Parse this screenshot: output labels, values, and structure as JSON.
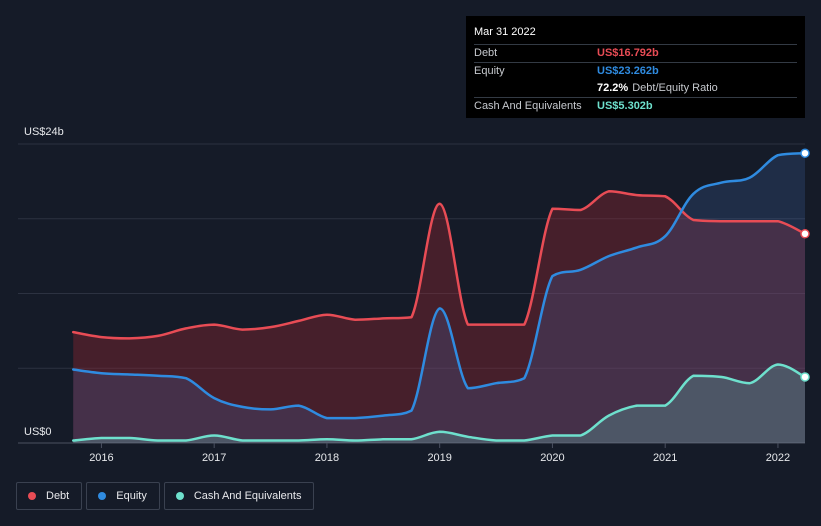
{
  "tooltip": {
    "date": "Mar 31 2022",
    "debt_label": "Debt",
    "debt_value": "US$16.792b",
    "equity_label": "Equity",
    "equity_value": "US$23.262b",
    "ratio_value": "72.2%",
    "ratio_label": "Debt/Equity Ratio",
    "cash_label": "Cash And Equivalents",
    "cash_value": "US$5.302b"
  },
  "legend": {
    "debt": "Debt",
    "equity": "Equity",
    "cash": "Cash And Equivalents"
  },
  "colors": {
    "debt": "#e84c55",
    "equity": "#2f8be0",
    "cash": "#6ee0cd",
    "background": "#151b28"
  },
  "chart_data": {
    "type": "area",
    "title": "",
    "xlabel": "",
    "ylabel": "",
    "y_top_label": "US$24b",
    "y_bottom_label": "US$0",
    "ylim": [
      0,
      24
    ],
    "xlim": [
      2015.26,
      2022.24
    ],
    "x_ticks": [
      2016,
      2017,
      2018,
      2019,
      2020,
      2021,
      2022
    ],
    "x_tick_labels": [
      "2016",
      "2017",
      "2018",
      "2019",
      "2020",
      "2021",
      "2022"
    ],
    "series": [
      {
        "name": "Debt",
        "key": "debt",
        "points": [
          [
            2015.75,
            8.9
          ],
          [
            2016.0,
            8.5
          ],
          [
            2016.25,
            8.4
          ],
          [
            2016.5,
            8.6
          ],
          [
            2016.75,
            9.2
          ],
          [
            2017.0,
            9.5
          ],
          [
            2017.25,
            9.1
          ],
          [
            2017.5,
            9.3
          ],
          [
            2017.75,
            9.8
          ],
          [
            2018.0,
            10.3
          ],
          [
            2018.25,
            9.9
          ],
          [
            2018.5,
            10.0
          ],
          [
            2018.75,
            10.1
          ],
          [
            2019.0,
            19.2
          ],
          [
            2019.25,
            9.5
          ],
          [
            2019.5,
            9.5
          ],
          [
            2019.75,
            9.5
          ],
          [
            2020.0,
            18.8
          ],
          [
            2020.25,
            18.7
          ],
          [
            2020.5,
            20.2
          ],
          [
            2020.75,
            19.9
          ],
          [
            2021.0,
            19.8
          ],
          [
            2021.25,
            17.9
          ],
          [
            2021.5,
            17.8
          ],
          [
            2021.75,
            17.8
          ],
          [
            2022.0,
            17.8
          ],
          [
            2022.24,
            16.792
          ]
        ]
      },
      {
        "name": "Equity",
        "key": "equity",
        "points": [
          [
            2015.75,
            5.9
          ],
          [
            2016.0,
            5.6
          ],
          [
            2016.25,
            5.5
          ],
          [
            2016.5,
            5.4
          ],
          [
            2016.75,
            5.2
          ],
          [
            2017.0,
            3.6
          ],
          [
            2017.25,
            2.9
          ],
          [
            2017.5,
            2.7
          ],
          [
            2017.75,
            3.0
          ],
          [
            2018.0,
            2.0
          ],
          [
            2018.25,
            2.0
          ],
          [
            2018.5,
            2.2
          ],
          [
            2018.75,
            2.6
          ],
          [
            2019.0,
            10.8
          ],
          [
            2019.25,
            4.4
          ],
          [
            2019.5,
            4.8
          ],
          [
            2019.75,
            5.2
          ],
          [
            2020.0,
            13.4
          ],
          [
            2020.25,
            13.9
          ],
          [
            2020.5,
            15.0
          ],
          [
            2020.75,
            15.7
          ],
          [
            2021.0,
            16.6
          ],
          [
            2021.25,
            20.0
          ],
          [
            2021.5,
            20.9
          ],
          [
            2021.75,
            21.3
          ],
          [
            2022.0,
            23.1
          ],
          [
            2022.24,
            23.262
          ]
        ]
      },
      {
        "name": "Cash And Equivalents",
        "key": "cash",
        "points": [
          [
            2015.75,
            0.2
          ],
          [
            2016.0,
            0.4
          ],
          [
            2016.25,
            0.4
          ],
          [
            2016.5,
            0.2
          ],
          [
            2016.75,
            0.2
          ],
          [
            2017.0,
            0.6
          ],
          [
            2017.25,
            0.2
          ],
          [
            2017.5,
            0.2
          ],
          [
            2017.75,
            0.2
          ],
          [
            2018.0,
            0.3
          ],
          [
            2018.25,
            0.2
          ],
          [
            2018.5,
            0.3
          ],
          [
            2018.75,
            0.3
          ],
          [
            2019.0,
            0.9
          ],
          [
            2019.25,
            0.5
          ],
          [
            2019.5,
            0.2
          ],
          [
            2019.75,
            0.2
          ],
          [
            2020.0,
            0.6
          ],
          [
            2020.25,
            0.6
          ],
          [
            2020.5,
            2.2
          ],
          [
            2020.75,
            3.0
          ],
          [
            2021.0,
            3.0
          ],
          [
            2021.25,
            5.4
          ],
          [
            2021.5,
            5.3
          ],
          [
            2021.75,
            4.8
          ],
          [
            2022.0,
            6.3
          ],
          [
            2022.24,
            5.302
          ]
        ]
      }
    ]
  }
}
